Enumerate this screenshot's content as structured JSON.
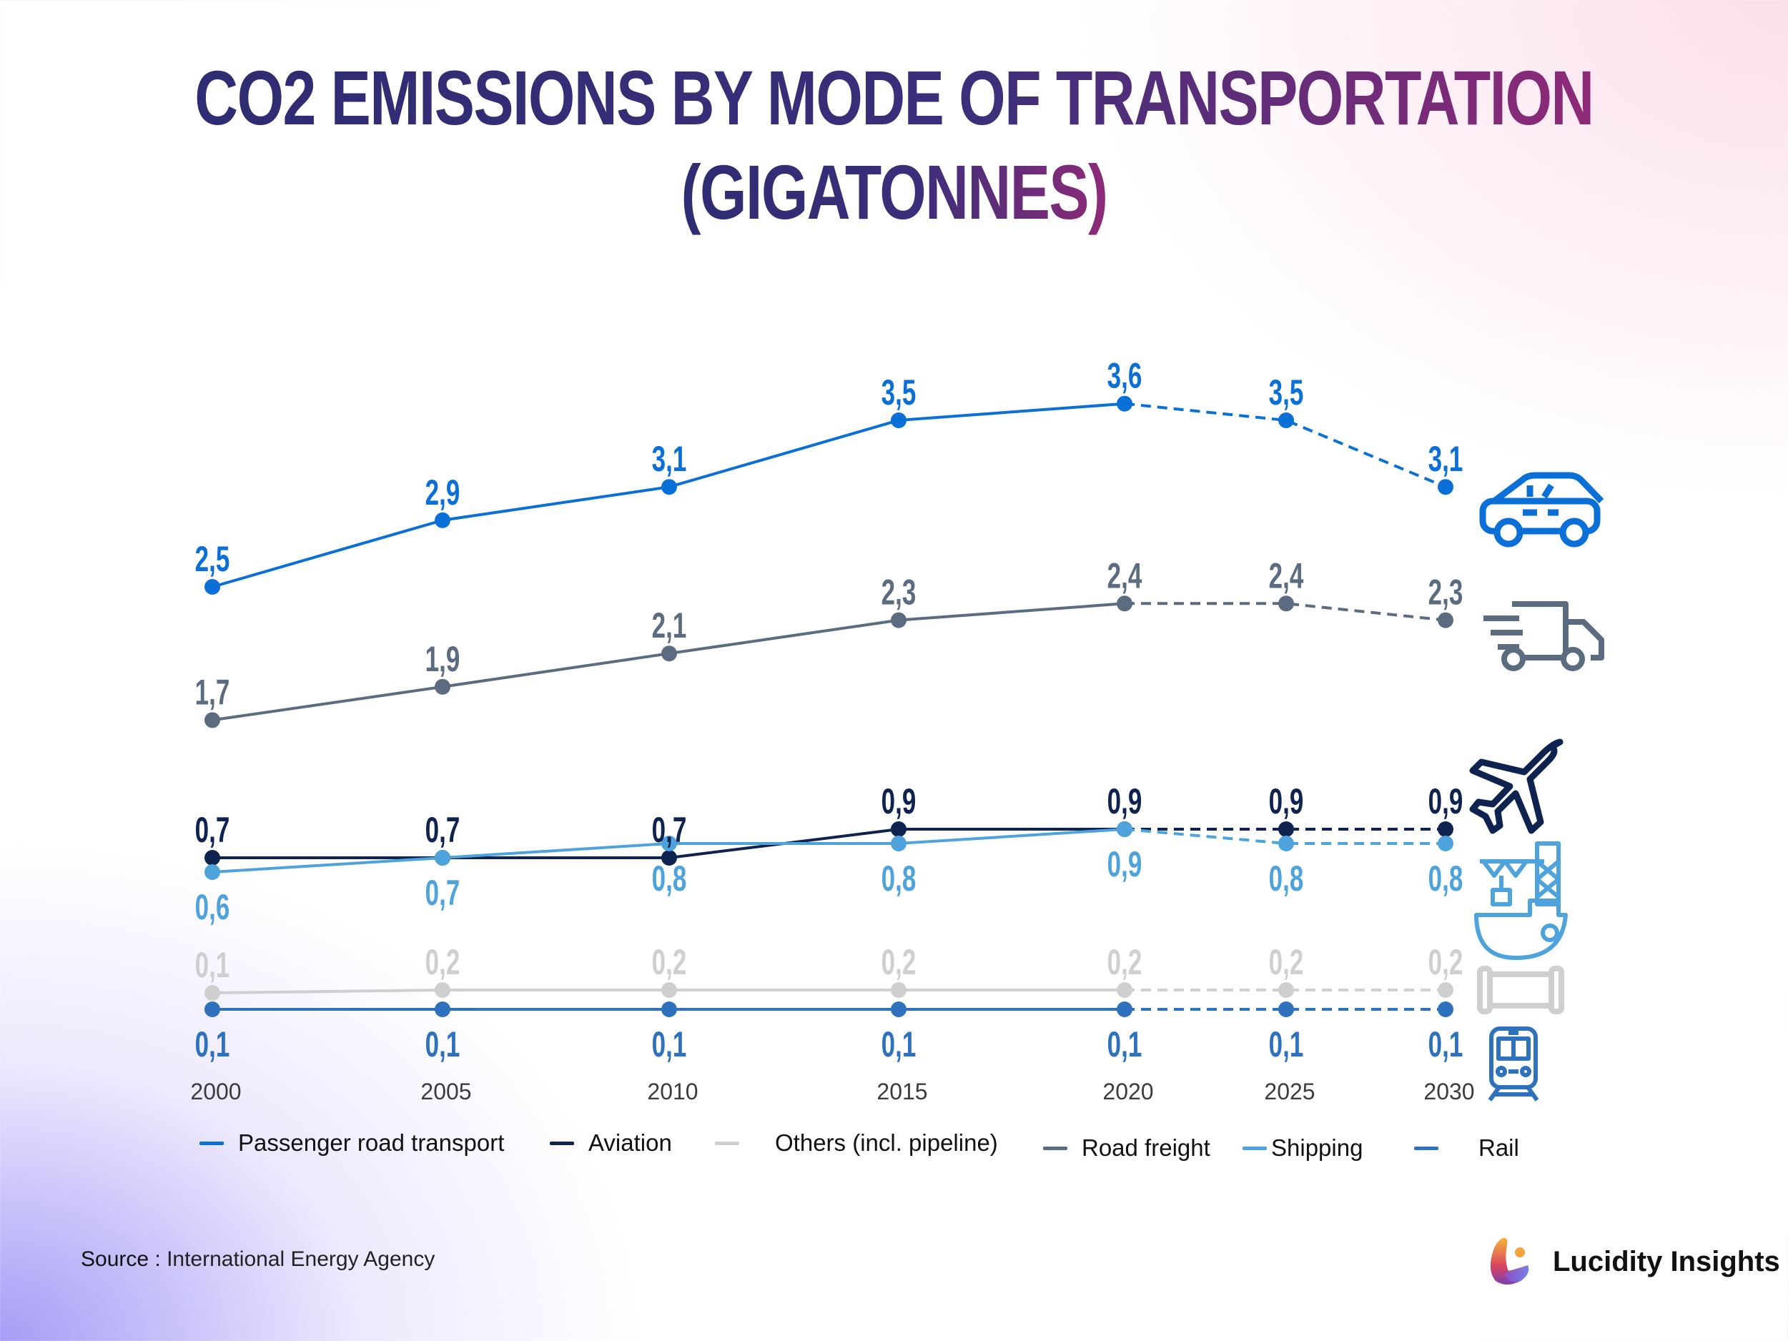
{
  "title": {
    "line1": "CO2 EMISSIONS BY MODE OF TRANSPORTATION",
    "line2": "(GIGATONNES)"
  },
  "source": {
    "label": "Source :",
    "value": "International Energy Agency"
  },
  "brand": {
    "name": "Lucidity Insights"
  },
  "chart_data": {
    "type": "line",
    "title": "CO2 EMISSIONS BY MODE OF TRANSPORTATION (GIGATONNES)",
    "x": [
      "2000",
      "2005",
      "2010",
      "2015",
      "2020",
      "2025",
      "2030"
    ],
    "projected_from": "2020",
    "grid": false,
    "legend_position": "bottom",
    "series": [
      {
        "name": "Passenger road transport",
        "color": "#0a6fd6",
        "icon": "car-icon",
        "values": [
          2.5,
          2.9,
          3.1,
          3.5,
          3.6,
          3.5,
          3.1
        ],
        "labels": [
          "2,5",
          "2,9",
          "3,1",
          "3,5",
          "3,6",
          "3,5",
          "3,1"
        ],
        "label_pos": "above"
      },
      {
        "name": "Aviation",
        "color": "#0f2350",
        "icon": "airplane-icon",
        "values": [
          0.7,
          0.7,
          0.7,
          0.9,
          0.9,
          0.9,
          0.9
        ],
        "labels": [
          "0,7",
          "0,7",
          "0,7",
          "0,9",
          "0,9",
          "0,9",
          "0,9"
        ],
        "label_pos": "above"
      },
      {
        "name": "Others (incl. pipeline)",
        "color": "#cfcfcf",
        "icon": "pipeline-icon",
        "values": [
          0.1,
          0.2,
          0.2,
          0.2,
          0.2,
          0.2,
          0.2
        ],
        "labels": [
          "0,1",
          "0,2",
          "0,2",
          "0,2",
          "0,2",
          "0,2",
          "0,2"
        ],
        "label_pos": "above"
      },
      {
        "name": "Road freight",
        "color": "#5b6b80",
        "icon": "truck-icon",
        "values": [
          1.7,
          1.9,
          2.1,
          2.3,
          2.4,
          2.4,
          2.3
        ],
        "labels": [
          "1,7",
          "1,9",
          "2,1",
          "2,3",
          "2,4",
          "2,4",
          "2,3"
        ],
        "label_pos": "above"
      },
      {
        "name": "Shipping",
        "color": "#4ea3dc",
        "icon": "ship-icon",
        "values": [
          0.6,
          0.7,
          0.8,
          0.8,
          0.9,
          0.8,
          0.8
        ],
        "labels": [
          "0,6",
          "0,7",
          "0,8",
          "0,8",
          "0,9",
          "0,8",
          "0,8"
        ],
        "label_pos": "below"
      },
      {
        "name": "Rail",
        "color": "#2e72bd",
        "icon": "train-icon",
        "values": [
          0.1,
          0.1,
          0.1,
          0.1,
          0.1,
          0.1,
          0.1
        ],
        "labels": [
          "0,1",
          "0,1",
          "0,1",
          "0,1",
          "0,1",
          "0,1",
          "0,1"
        ],
        "label_pos": "below"
      }
    ]
  }
}
